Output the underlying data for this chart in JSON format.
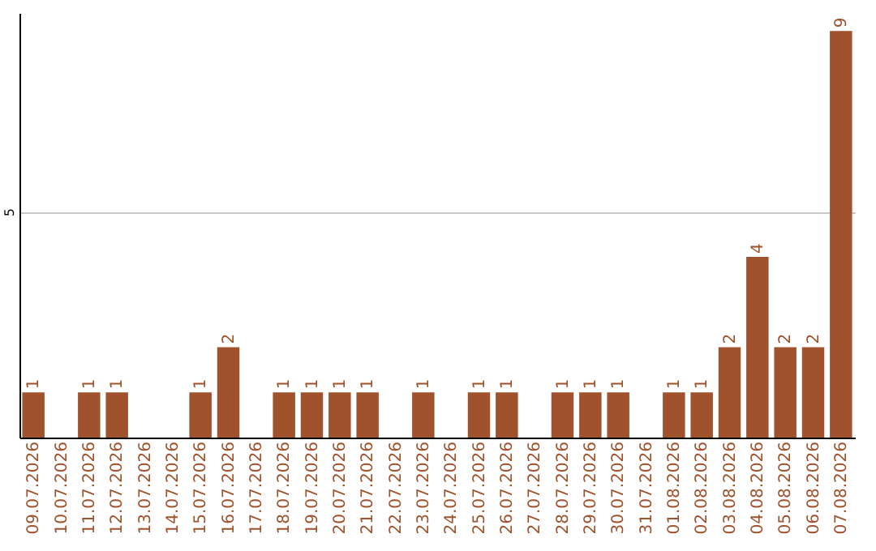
{
  "chart_data": {
    "type": "bar",
    "categories": [
      "09.07.2026",
      "10.07.2026",
      "11.07.2026",
      "12.07.2026",
      "13.07.2026",
      "14.07.2026",
      "15.07.2026",
      "16.07.2026",
      "17.07.2026",
      "18.07.2026",
      "19.07.2026",
      "20.07.2026",
      "21.07.2026",
      "22.07.2026",
      "23.07.2026",
      "24.07.2026",
      "25.07.2026",
      "26.07.2026",
      "27.07.2026",
      "28.07.2026",
      "29.07.2026",
      "30.07.2026",
      "31.07.2026",
      "01.08.2026",
      "02.08.2026",
      "03.08.2026",
      "04.08.2026",
      "05.08.2026",
      "06.08.2026",
      "07.08.2026"
    ],
    "values": [
      1,
      null,
      1,
      1,
      null,
      null,
      1,
      2,
      null,
      1,
      1,
      1,
      1,
      null,
      1,
      null,
      1,
      1,
      null,
      1,
      1,
      1,
      null,
      1,
      1,
      2,
      4,
      2,
      2,
      9
    ],
    "color": "#a0522d",
    "ylim": [
      0,
      9.4
    ],
    "yticks": [
      5
    ],
    "grid": "y",
    "data_labels": true
  }
}
